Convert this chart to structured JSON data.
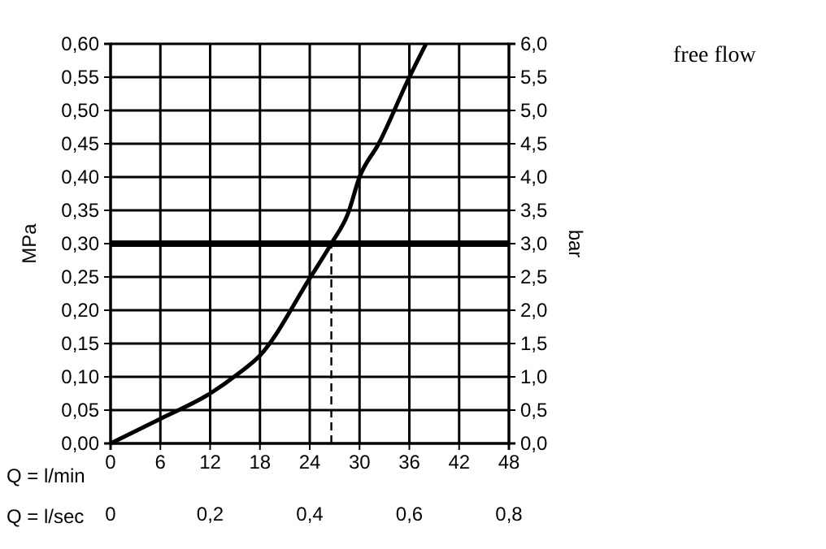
{
  "chart_data": {
    "type": "line",
    "xlabel": "Q = l/min",
    "ylabel": "MPa",
    "y2label": "bar",
    "x2label": "Q = l/sec",
    "annotations": [
      "free flow"
    ],
    "xlim": [
      0,
      48
    ],
    "xticks": [
      0,
      6,
      12,
      18,
      24,
      30,
      36,
      42,
      48
    ],
    "x2lim": [
      0,
      0.8
    ],
    "x2ticks": [
      0,
      {
        "value": 0.2,
        "label": "0,2"
      },
      {
        "value": 0.4,
        "label": "0,4"
      },
      {
        "value": 0.6,
        "label": "0,6"
      },
      {
        "value": 0.8,
        "label": "0,8"
      }
    ],
    "ylim": [
      0,
      0.6
    ],
    "yticks": [
      {
        "value": 0,
        "label": "0,00"
      },
      {
        "value": 0.05,
        "label": "0,05"
      },
      {
        "value": 0.1,
        "label": "0,10"
      },
      {
        "value": 0.15,
        "label": "0,15"
      },
      {
        "value": 0.2,
        "label": "0,20"
      },
      {
        "value": 0.25,
        "label": "0,25"
      },
      {
        "value": 0.3,
        "label": "0,30"
      },
      {
        "value": 0.35,
        "label": "0,35"
      },
      {
        "value": 0.4,
        "label": "0,40"
      },
      {
        "value": 0.45,
        "label": "0,45"
      },
      {
        "value": 0.5,
        "label": "0,50"
      },
      {
        "value": 0.55,
        "label": "0,55"
      },
      {
        "value": 0.6,
        "label": "0,60"
      }
    ],
    "y2lim": [
      0,
      6
    ],
    "y2ticks": [
      {
        "value": 0,
        "label": "0,0"
      },
      {
        "value": 0.5,
        "label": "0,5"
      },
      {
        "value": 1,
        "label": "1,0"
      },
      {
        "value": 1.5,
        "label": "1,5"
      },
      {
        "value": 2,
        "label": "2,0"
      },
      {
        "value": 2.5,
        "label": "2,5"
      },
      {
        "value": 3,
        "label": "3,0"
      },
      {
        "value": 3.5,
        "label": "3,5"
      },
      {
        "value": 4,
        "label": "4,0"
      },
      {
        "value": 4.5,
        "label": "4,5"
      },
      {
        "value": 5,
        "label": "5,0"
      },
      {
        "value": 5.5,
        "label": "5,5"
      },
      {
        "value": 6,
        "label": "6,0"
      }
    ],
    "grid": true,
    "marker": "none",
    "line_style": "solid",
    "ref_lines": [
      {
        "axis": "y",
        "value": 0.3,
        "color": "#000000",
        "line_style": "solid"
      },
      {
        "axis": "x",
        "value": 26.6,
        "color": "#000000",
        "line_style": "dashed"
      }
    ],
    "series": [
      {
        "color": "#000000",
        "x": [
          0,
          6,
          12,
          15.3,
          18,
          24,
          26.6,
          28.6,
          30,
          32.3,
          36,
          38
        ],
        "values": [
          0,
          0.037,
          0.075,
          0.104,
          0.132,
          0.248,
          0.3,
          0.345,
          0.4,
          0.45,
          0.55,
          0.6
        ]
      }
    ]
  }
}
